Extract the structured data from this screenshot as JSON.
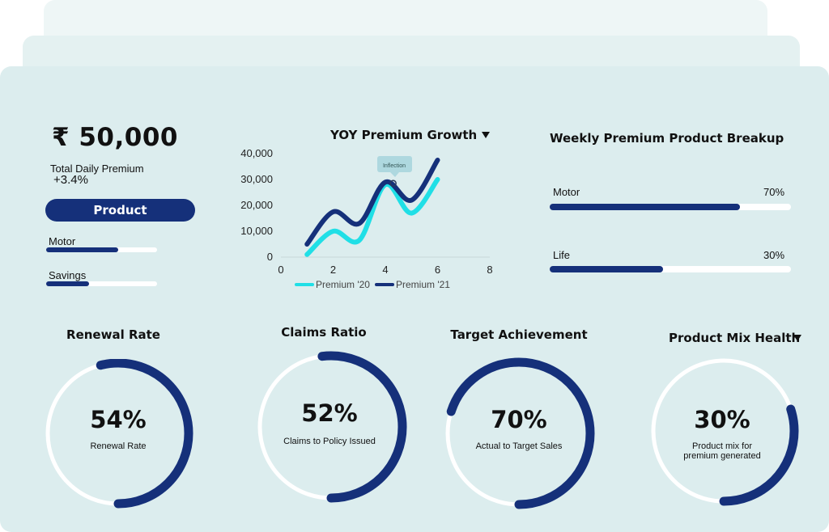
{
  "summary": {
    "amount": "₹ 50,000",
    "label": "Total Daily Premium",
    "change": "+3.4%",
    "product_button": "Product",
    "bars": [
      {
        "label": "Motor",
        "value": 0.65
      },
      {
        "label": "Savings",
        "value": 0.39
      }
    ]
  },
  "yoy": {
    "title": "YOY Premium Growth",
    "dropdown_icon": "caret-down-icon",
    "annotation": "Inflection",
    "chart_data": {
      "type": "line",
      "x_ticks": [
        "0",
        "2",
        "4",
        "6",
        "8"
      ],
      "y_ticks": [
        "0",
        "10,000",
        "20,000",
        "30,000",
        "40,000"
      ],
      "xlim": [
        0,
        8
      ],
      "ylim": [
        0,
        40000
      ],
      "grid": false,
      "legend_position": "bottom",
      "series": [
        {
          "name": "Premium '20",
          "color": "#20dfe6",
          "points": [
            [
              1,
              1000
            ],
            [
              2,
              10000
            ],
            [
              3,
              6500
            ],
            [
              4,
              28000
            ],
            [
              5,
              17000
            ],
            [
              6,
              30000
            ]
          ]
        },
        {
          "name": "Premium '21",
          "color": "#15307a",
          "points": [
            [
              1,
              5000
            ],
            [
              2,
              17500
            ],
            [
              3,
              13000
            ],
            [
              4,
              29000
            ],
            [
              5,
              22000
            ],
            [
              6,
              37500
            ]
          ]
        }
      ]
    }
  },
  "weekly": {
    "title": "Weekly Premium Product Breakup",
    "items": [
      {
        "label": "Motor",
        "percent": "70%",
        "value": 0.79
      },
      {
        "label": "Life",
        "percent": "30%",
        "value": 0.47
      }
    ]
  },
  "gauges": [
    {
      "title": "Renewal Rate",
      "value_text": "54%",
      "caption": "Renewal Rate",
      "value": 0.54
    },
    {
      "title": "Claims Ratio",
      "value_text": "52%",
      "caption": "Claims to Policy Issued",
      "value": 0.52
    },
    {
      "title": "Target Achievement",
      "value_text": "70%",
      "caption": "Actual to Target Sales",
      "value": 0.7
    },
    {
      "title": "Product Mix Health",
      "value_text": "30%",
      "caption": "Product mix for premium generated",
      "value": 0.3,
      "dropdown_icon": "caret-down-icon"
    }
  ],
  "colors": {
    "accent": "#15307a",
    "secondary": "#20dfe6",
    "panel": "#dcedee"
  }
}
